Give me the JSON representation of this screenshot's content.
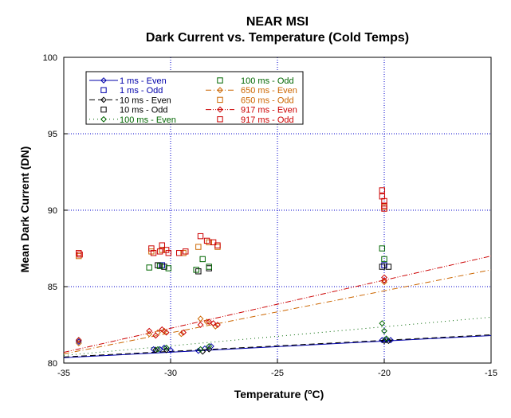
{
  "chart_data": {
    "type": "scatter",
    "title": "NEAR MSI",
    "subtitle": "Dark Current vs. Temperature (Cold Temps)",
    "xlabel": "Temperature (°C)",
    "xlabel_parts": {
      "pre": "Temperature (",
      "sup": "o",
      "post": "C)"
    },
    "ylabel": "Mean Dark Current (DN)",
    "xlim": [
      -35,
      -15
    ],
    "ylim": [
      80,
      100
    ],
    "xticks": [
      -35,
      -30,
      -25,
      -20,
      -15
    ],
    "yticks": [
      80,
      85,
      90,
      95,
      100
    ],
    "xtick_labels": [
      "-35",
      "-30",
      "-25",
      "-20",
      "-15"
    ],
    "ytick_labels": [
      "80",
      "85",
      "90",
      "95",
      "100"
    ],
    "grid": true,
    "legend_position": "top-left",
    "series": [
      {
        "name": "1 ms - Even",
        "marker": "diamond",
        "line": "solid",
        "color": "#0000aa",
        "points": [
          [
            -34.3,
            81.4
          ],
          [
            -30.8,
            80.9
          ],
          [
            -30.5,
            80.9
          ],
          [
            -30.3,
            81.0
          ],
          [
            -30.0,
            80.85
          ],
          [
            -28.7,
            80.8
          ],
          [
            -28.4,
            80.95
          ],
          [
            -28.1,
            81.1
          ],
          [
            -20.1,
            81.5
          ],
          [
            -19.9,
            81.5
          ],
          [
            -19.7,
            81.5
          ]
        ],
        "fit": [
          [
            -35,
            80.35
          ],
          [
            -15,
            81.8
          ]
        ]
      },
      {
        "name": "1 ms - Odd",
        "marker": "square",
        "line": "none",
        "color": "#0000aa",
        "points": [
          [
            -30.4,
            86.4
          ],
          [
            -20.0,
            86.4
          ]
        ]
      },
      {
        "name": "10 ms - Even",
        "marker": "diamond",
        "line": "dashed",
        "color": "#000000",
        "points": [
          [
            -30.7,
            80.85
          ],
          [
            -30.2,
            80.85
          ],
          [
            -28.5,
            80.75
          ],
          [
            -28.2,
            80.9
          ],
          [
            -20.0,
            81.45
          ],
          [
            -19.8,
            81.45
          ]
        ],
        "fit": [
          [
            -35,
            80.4
          ],
          [
            -15,
            81.85
          ]
        ]
      },
      {
        "name": "10 ms - Odd",
        "marker": "square",
        "line": "none",
        "color": "#000000",
        "points": [
          [
            -30.6,
            86.4
          ],
          [
            -30.3,
            86.3
          ],
          [
            -28.7,
            86.0
          ],
          [
            -28.2,
            86.2
          ],
          [
            -20.1,
            86.3
          ],
          [
            -19.8,
            86.3
          ]
        ]
      },
      {
        "name": "100 ms - Even",
        "marker": "diamond",
        "line": "dotted",
        "color": "#006600",
        "points": [
          [
            -34.3,
            81.5
          ],
          [
            -30.6,
            80.9
          ],
          [
            -30.2,
            81.0
          ],
          [
            -28.6,
            80.9
          ],
          [
            -28.2,
            81.1
          ],
          [
            -20.1,
            82.6
          ],
          [
            -20.0,
            82.1
          ],
          [
            -19.9,
            81.6
          ]
        ],
        "fit": [
          [
            -35,
            80.5
          ],
          [
            -15,
            83.0
          ]
        ]
      },
      {
        "name": "100 ms - Odd",
        "marker": "square",
        "line": "none",
        "color": "#006600",
        "points": [
          [
            -31.0,
            86.25
          ],
          [
            -30.5,
            86.35
          ],
          [
            -30.1,
            86.2
          ],
          [
            -28.8,
            86.1
          ],
          [
            -28.5,
            86.8
          ],
          [
            -28.2,
            86.3
          ],
          [
            -20.1,
            87.5
          ],
          [
            -20.0,
            86.8
          ]
        ]
      },
      {
        "name": "650 ms - Even",
        "marker": "diamond",
        "line": "dashdot",
        "color": "#cc6600",
        "points": [
          [
            -34.3,
            81.3
          ],
          [
            -31.0,
            81.9
          ],
          [
            -30.6,
            82.0
          ],
          [
            -30.3,
            82.1
          ],
          [
            -29.5,
            81.9
          ],
          [
            -28.6,
            82.9
          ],
          [
            -28.3,
            82.7
          ],
          [
            -27.9,
            82.4
          ],
          [
            -20.0,
            85.3
          ]
        ],
        "fit": [
          [
            -35,
            80.6
          ],
          [
            -15,
            86.1
          ]
        ]
      },
      {
        "name": "650 ms - Odd",
        "marker": "square",
        "line": "none",
        "color": "#cc6600",
        "points": [
          [
            -34.3,
            87.0
          ],
          [
            -30.9,
            87.3
          ],
          [
            -30.4,
            87.4
          ],
          [
            -29.4,
            87.2
          ],
          [
            -28.7,
            87.6
          ],
          [
            -28.2,
            87.9
          ],
          [
            -27.8,
            87.6
          ],
          [
            -20.0,
            90.2
          ]
        ]
      },
      {
        "name": "917 ms - Even",
        "marker": "diamond",
        "line": "dashdotdot",
        "color": "#cc0000",
        "points": [
          [
            -34.3,
            81.5
          ],
          [
            -31.0,
            82.1
          ],
          [
            -30.7,
            81.8
          ],
          [
            -30.4,
            82.2
          ],
          [
            -30.2,
            82.0
          ],
          [
            -29.4,
            82.0
          ],
          [
            -28.6,
            82.5
          ],
          [
            -28.2,
            82.7
          ],
          [
            -28.0,
            82.6
          ],
          [
            -27.8,
            82.5
          ],
          [
            -20.0,
            85.6
          ],
          [
            -20.0,
            85.4
          ]
        ],
        "fit": [
          [
            -35,
            80.7
          ],
          [
            -15,
            87.0
          ]
        ]
      },
      {
        "name": "917 ms - Odd",
        "marker": "square",
        "line": "none",
        "color": "#cc0000",
        "points": [
          [
            -34.3,
            87.2
          ],
          [
            -34.25,
            87.1
          ],
          [
            -30.9,
            87.5
          ],
          [
            -30.8,
            87.2
          ],
          [
            -30.5,
            87.3
          ],
          [
            -30.4,
            87.7
          ],
          [
            -30.2,
            87.4
          ],
          [
            -30.1,
            87.2
          ],
          [
            -29.6,
            87.2
          ],
          [
            -29.3,
            87.3
          ],
          [
            -28.6,
            88.3
          ],
          [
            -28.3,
            88.0
          ],
          [
            -28.0,
            87.9
          ],
          [
            -27.8,
            87.7
          ],
          [
            -20.1,
            91.3
          ],
          [
            -20.1,
            90.9
          ],
          [
            -20.0,
            90.6
          ],
          [
            -20.0,
            90.3
          ],
          [
            -20.0,
            90.1
          ]
        ]
      }
    ]
  },
  "colors": {
    "grid": "#0000cc",
    "axes": "#000000",
    "background": "#ffffff"
  }
}
